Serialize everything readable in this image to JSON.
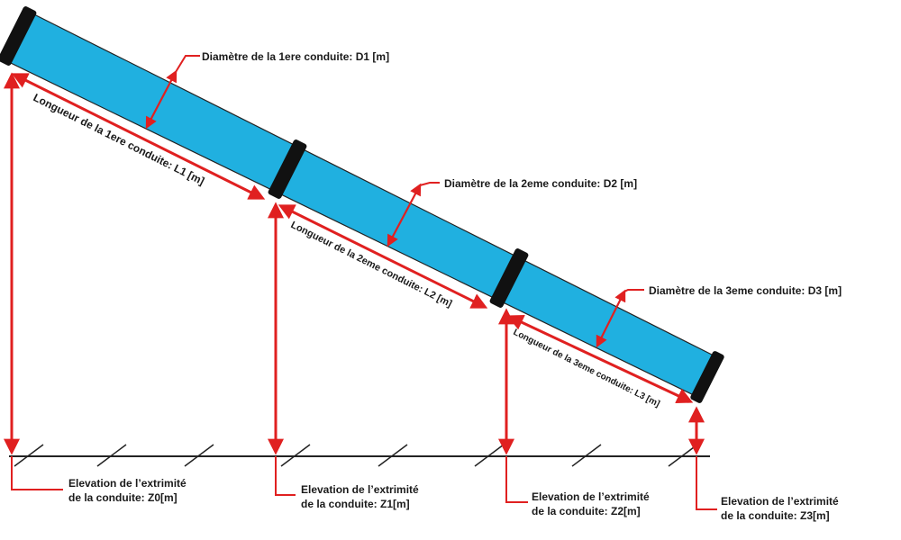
{
  "diameters": [
    "Diamètre de la 1ere conduite: D1 [m]",
    "Diamètre de la 2eme conduite: D2 [m]",
    "Diamètre de la 3eme conduite: D3 [m]"
  ],
  "lengths": [
    "Longueur de la 1ere conduite: L1 [m]",
    "Longueur de la 2eme conduite: L2 [m]",
    "Longueur de la 3eme conduite: L3 [m]"
  ],
  "elevations": [
    {
      "line1": "Elevation de l’extrimité",
      "line2": "de la conduite: Z0[m]"
    },
    {
      "line1": "Elevation de l’extrimité",
      "line2": "de la conduite: Z1[m]"
    },
    {
      "line1": "Elevation de l’extrimité",
      "line2": "de la conduite: Z2[m]"
    },
    {
      "line1": "Elevation de l’extrimité",
      "line2": "de la conduite: Z3[m]"
    }
  ],
  "colors": {
    "pipe_fill": "#20b0e0",
    "dimension_red": "#e02020",
    "flange": "#111111",
    "ground": "#222222"
  }
}
